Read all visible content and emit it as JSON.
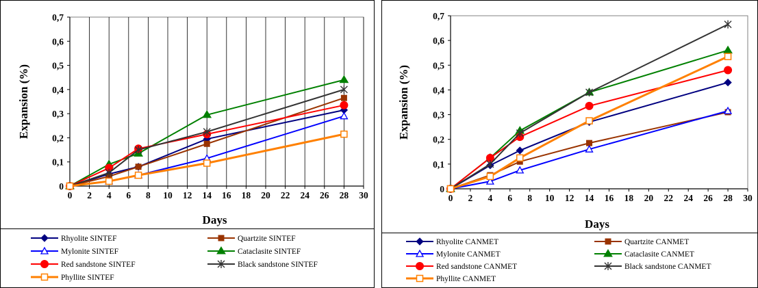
{
  "chart_data": [
    {
      "type": "line",
      "title": "",
      "xlabel": "Days",
      "ylabel": "Expansion (%)",
      "xlim": [
        0,
        30
      ],
      "ylim": [
        0,
        0.7
      ],
      "xticks": [
        "0",
        "2",
        "4",
        "6",
        "8",
        "10",
        "12",
        "14",
        "16",
        "18",
        "20",
        "22",
        "24",
        "26",
        "28",
        "30"
      ],
      "yticks": [
        "0",
        "0,1",
        "0,2",
        "0,3",
        "0,4",
        "0,5",
        "0,6",
        "0,7"
      ],
      "grid": "vertical",
      "legend": "bottom",
      "x": [
        0,
        4,
        7,
        14,
        28
      ],
      "series": [
        {
          "name": "Rhyolite SINTEF",
          "color": "#000080",
          "marker": "diamond-filled",
          "width": 2,
          "values": [
            0,
            0.05,
            0.08,
            0.195,
            0.315
          ]
        },
        {
          "name": "Quartzite SINTEF",
          "color": "#993300",
          "marker": "square-filled",
          "width": 2,
          "values": [
            0,
            0.04,
            0.08,
            0.175,
            0.365
          ]
        },
        {
          "name": "Mylonite SINTEF",
          "color": "#0000ff",
          "marker": "triangle-open",
          "width": 2,
          "values": [
            0,
            0.02,
            0.045,
            0.115,
            0.29
          ]
        },
        {
          "name": "Cataclasite SINTEF",
          "color": "#008000",
          "marker": "triangle-filled",
          "width": 2,
          "values": [
            0,
            0.09,
            0.135,
            0.295,
            0.44
          ]
        },
        {
          "name": "Red sandstone SINTEF",
          "color": "#ff0000",
          "marker": "circle-filled",
          "width": 2,
          "values": [
            0,
            0.075,
            0.155,
            0.215,
            0.335
          ]
        },
        {
          "name": "Black sandstone SINTEF",
          "color": "#333333",
          "marker": "star",
          "width": 2,
          "values": [
            0,
            0.055,
            0.15,
            0.225,
            0.4
          ]
        },
        {
          "name": "Phyllite SINTEF",
          "color": "#ff8000",
          "marker": "square-open",
          "width": 3,
          "values": [
            0,
            0.02,
            0.045,
            0.095,
            0.215
          ]
        }
      ]
    },
    {
      "type": "line",
      "title": "",
      "xlabel": "Days",
      "ylabel": "Expansion (%)",
      "xlim": [
        0,
        30
      ],
      "ylim": [
        0,
        0.7
      ],
      "xticks": [
        "0",
        "2",
        "4",
        "6",
        "8",
        "10",
        "12",
        "14",
        "16",
        "18",
        "20",
        "22",
        "24",
        "26",
        "28",
        "30"
      ],
      "yticks": [
        "0",
        "0,1",
        "0,2",
        "0,3",
        "0,4",
        "0,5",
        "0,6",
        "0,7"
      ],
      "grid": "none",
      "legend": "bottom",
      "x": [
        0,
        4,
        7,
        14,
        28
      ],
      "series": [
        {
          "name": "Rhyolite CANMET",
          "color": "#000080",
          "marker": "diamond-filled",
          "width": 2,
          "values": [
            0,
            0.095,
            0.155,
            0.27,
            0.43
          ]
        },
        {
          "name": "Quartzite CANMET",
          "color": "#993300",
          "marker": "square-filled",
          "width": 2,
          "values": [
            0,
            0.055,
            0.11,
            0.185,
            0.31
          ]
        },
        {
          "name": "Mylonite CANMET",
          "color": "#0000ff",
          "marker": "triangle-open",
          "width": 2,
          "values": [
            0,
            0.03,
            0.075,
            0.16,
            0.315
          ]
        },
        {
          "name": "Cataclasite CANMET",
          "color": "#008000",
          "marker": "triangle-filled",
          "width": 2,
          "values": [
            0,
            0.125,
            0.235,
            0.39,
            0.56
          ]
        },
        {
          "name": "Red sandstone CANMET",
          "color": "#ff0000",
          "marker": "circle-filled",
          "width": 2,
          "values": [
            0,
            0.125,
            0.21,
            0.335,
            0.48
          ]
        },
        {
          "name": "Black sandstone CANMET",
          "color": "#333333",
          "marker": "star",
          "width": 2,
          "values": [
            0,
            0.1,
            0.225,
            0.39,
            0.665
          ]
        },
        {
          "name": "Phyllite CANMET",
          "color": "#ff8000",
          "marker": "square-open",
          "width": 3,
          "values": [
            0,
            0.05,
            0.125,
            0.275,
            0.535
          ]
        }
      ]
    }
  ]
}
